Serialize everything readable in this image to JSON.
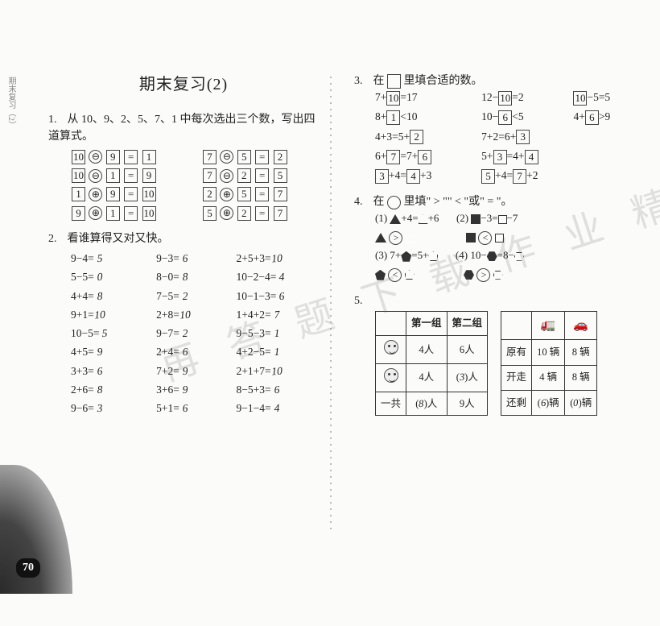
{
  "side_tab": "期末复习（2）",
  "page_number": "70",
  "left": {
    "title": "期末复习(2)",
    "q1": {
      "num": "1.",
      "text": "从 10、9、2、5、7、1 中每次选出三个数，写出四道算式。",
      "rows": [
        {
          "a": "10",
          "op": "⊖",
          "b": "9",
          "eq": "=",
          "c": "1",
          "a2": "7",
          "op2": "⊖",
          "b2": "5",
          "eq2": "=",
          "c2": "2"
        },
        {
          "a": "10",
          "op": "⊖",
          "b": "1",
          "eq": "=",
          "c": "9",
          "a2": "7",
          "op2": "⊖",
          "b2": "2",
          "eq2": "=",
          "c2": "5"
        },
        {
          "a": "1",
          "op": "⊕",
          "b": "9",
          "eq": "=",
          "c": "10",
          "a2": "2",
          "op2": "⊕",
          "b2": "5",
          "eq2": "=",
          "c2": "7"
        },
        {
          "a": "9",
          "op": "⊕",
          "b": "1",
          "eq": "=",
          "c": "10",
          "a2": "5",
          "op2": "⊕",
          "b2": "2",
          "eq2": "=",
          "c2": "7"
        }
      ]
    },
    "q2": {
      "num": "2.",
      "text": "看谁算得又对又快。",
      "rows": [
        [
          "9−4=",
          "5",
          "9−3=",
          "6",
          "2+5+3=",
          "10"
        ],
        [
          "5−5=",
          "0",
          "8−0=",
          "8",
          "10−2−4=",
          "4"
        ],
        [
          "4+4=",
          "8",
          "7−5=",
          "2",
          "10−1−3=",
          "6"
        ],
        [
          "9+1=",
          "10",
          "2+8=",
          "10",
          "1+4+2=",
          "7"
        ],
        [
          "10−5=",
          "5",
          "9−7=",
          "2",
          "9−5−3=",
          "1"
        ],
        [
          "4+5=",
          "9",
          "2+4=",
          "6",
          "4+2−5=",
          "1"
        ],
        [
          "3+3=",
          "6",
          "7+2=",
          "9",
          "2+1+7=",
          "10"
        ],
        [
          "2+6=",
          "8",
          "3+6=",
          "9",
          "8−5+3=",
          "6"
        ],
        [
          "9−6=",
          "3",
          "5+1=",
          "6",
          "9−1−4=",
          "4"
        ]
      ]
    }
  },
  "right": {
    "q3": {
      "num": "3.",
      "text_a": "在",
      "text_b": "里填合适的数。",
      "rows": [
        [
          "7+",
          "10",
          "=17",
          "12−",
          "10",
          "=2",
          "",
          "10",
          "−5=5"
        ],
        [
          "8+",
          "1",
          "<10",
          "10−",
          "6",
          "<5",
          "4+",
          "6",
          ">9"
        ],
        [
          "4+3=5+",
          "2",
          "",
          "7+2=6+",
          "3",
          "",
          "",
          "",
          ""
        ],
        [
          "6+",
          "7",
          "=7+",
          "6",
          "",
          "5+",
          "3",
          "=4+",
          "4",
          ""
        ],
        [
          "",
          "3",
          "+4=",
          "4",
          "+3",
          "",
          "5",
          "+4=",
          "7",
          "+2"
        ]
      ]
    },
    "q4": {
      "num": "4.",
      "text_a": "在",
      "text_b": "里填\" > \"\" < \"或\" = \"。",
      "items": [
        {
          "idx": "(1)",
          "lhs": "▲+4=△+6",
          "ans": ">",
          "shapes": [
            "tri-f",
            "tri-o"
          ]
        },
        {
          "idx": "(2)",
          "lhs": "■−3=□−7",
          "ans": "<",
          "shapes": [
            "sq-f",
            "sq-o"
          ]
        },
        {
          "idx": "(3)",
          "lhs": "7+⬟=5+⬠",
          "ans": "<",
          "shapes": [
            "pent-f",
            "pent-o"
          ]
        },
        {
          "idx": "(4)",
          "lhs": "10−⬢=8−⬡",
          "ans": ">",
          "shapes": [
            "hex-f",
            "hex-o"
          ]
        }
      ]
    },
    "q5": {
      "num": "5.",
      "table1": {
        "headers": [
          "",
          "第一组",
          "第二组"
        ],
        "rows": [
          {
            "icon": "face",
            "c1": "4人",
            "c2": "6人"
          },
          {
            "icon": "face",
            "c1": "4人",
            "c2_pre": "(",
            "c2_hand": "3",
            "c2_post": ")人"
          },
          {
            "label": "一共",
            "c1_pre": "(",
            "c1_hand": "8",
            "c1_post": ")人",
            "c2": "9人"
          }
        ]
      },
      "table2": {
        "headers": [
          "",
          "🚛",
          "🚗"
        ],
        "rows": [
          {
            "label": "原有",
            "c1": "10 辆",
            "c2": "8 辆"
          },
          {
            "label": "开走",
            "c1": "4 辆",
            "c2": "8 辆"
          },
          {
            "label": "还剩",
            "c1_pre": "(",
            "c1_hand": "6",
            "c1_post": ")辆",
            "c2_pre": "(",
            "c2_hand": "0",
            "c2_post": ")辆"
          }
        ]
      }
    }
  },
  "watermark": "再 答 题 下 载 作 业 精 灵",
  "colors": {
    "bg": "#fbfbf9",
    "text": "#222",
    "border": "#333",
    "hand": "#222"
  }
}
